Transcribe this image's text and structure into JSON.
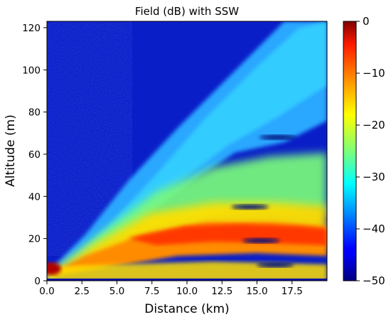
{
  "chart_data": {
    "type": "heatmap",
    "title": "Field (dB) with SSW",
    "xlabel": "Distance (km)",
    "ylabel": "Altitude (m)",
    "xlim": [
      0,
      20
    ],
    "ylim": [
      0,
      123
    ],
    "x_ticks": [
      "0.0",
      "2.5",
      "5.0",
      "7.5",
      "10.0",
      "12.5",
      "15.0",
      "17.5"
    ],
    "x_tick_values": [
      0,
      2.5,
      5,
      7.5,
      10,
      12.5,
      15,
      17.5
    ],
    "y_ticks": [
      "0",
      "20",
      "40",
      "60",
      "80",
      "100",
      "120"
    ],
    "y_tick_values": [
      0,
      20,
      40,
      60,
      80,
      100,
      120
    ],
    "colorbar": {
      "label": "",
      "range": [
        -50,
        0
      ],
      "ticks": [
        "0",
        "−10",
        "−20",
        "−30",
        "−40",
        "−50"
      ],
      "tick_values": [
        0,
        -10,
        -20,
        -30,
        -40,
        -50
      ],
      "colormap": "jet"
    },
    "description_features": {
      "source_altitude_m": 7,
      "strong_duct_band_m": [
        5,
        35
      ],
      "duct_core_altitude_m": 20,
      "nulls": [
        {
          "x_km": 15.3,
          "y_m": 19
        },
        {
          "x_km": 14.5,
          "y_m": 35
        },
        {
          "x_km": 16.5,
          "y_m": 68
        },
        {
          "x_km": 16.3,
          "y_m": 7.5
        }
      ]
    }
  }
}
